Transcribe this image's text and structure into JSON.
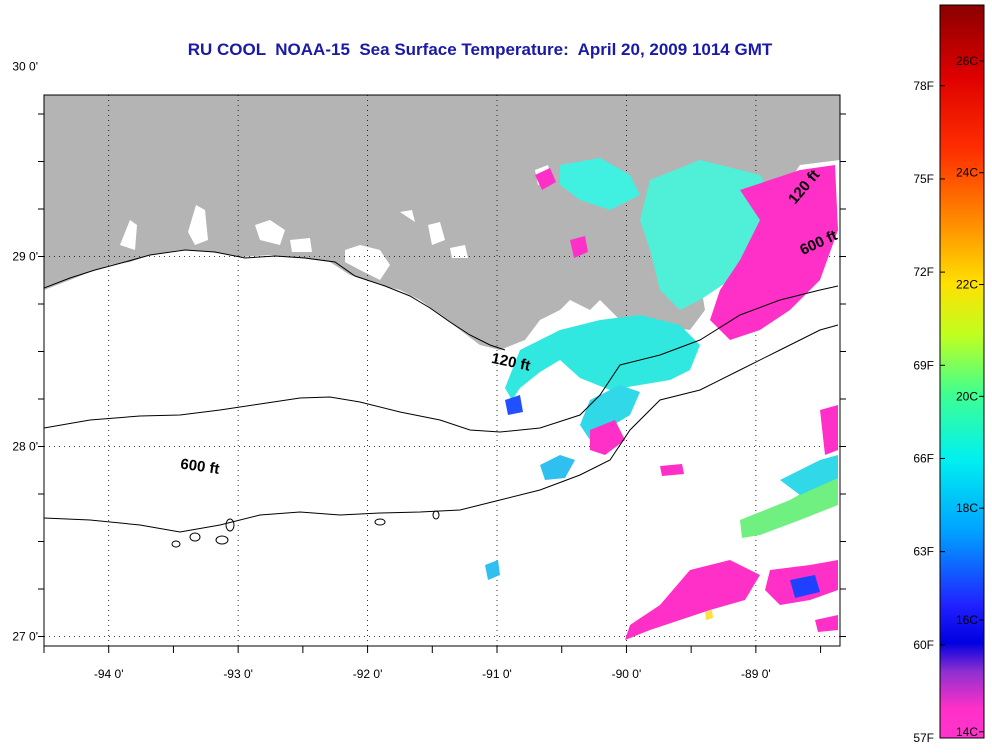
{
  "title": "RU COOL  NOAA-15  Sea Surface Temperature:  April 20, 2009 1014 GMT",
  "map": {
    "lon_range": [
      -94.5,
      -88.35
    ],
    "lat_range": [
      26.95,
      29.85
    ],
    "lon_ticks": [
      {
        "value": -94,
        "label": "-94 0'"
      },
      {
        "value": -93,
        "label": "-93 0'"
      },
      {
        "value": -92,
        "label": "-92 0'"
      },
      {
        "value": -91,
        "label": "-91 0'"
      },
      {
        "value": -90,
        "label": "-90 0'"
      },
      {
        "value": -89,
        "label": "-89 0'"
      }
    ],
    "lat_ticks": [
      {
        "value": 30,
        "label": "30 0'"
      },
      {
        "value": 29,
        "label": "29 0'"
      },
      {
        "value": 28,
        "label": "28 0'"
      },
      {
        "value": 27,
        "label": "27 0'"
      }
    ],
    "contour_labels": [
      {
        "label": "120 ft",
        "lon": -90.9,
        "lat": 28.42
      },
      {
        "label": "600 ft",
        "lon": -93.3,
        "lat": 27.87
      },
      {
        "label": "120 ft",
        "lon": -88.6,
        "lat": 29.35
      },
      {
        "label": "600 ft",
        "lon": -88.5,
        "lat": 29.05
      }
    ]
  },
  "colorbar": {
    "fahrenheit_labels": [
      "78F",
      "75F",
      "72F",
      "69F",
      "66F",
      "63F",
      "60F",
      "57F"
    ],
    "celsius_labels": [
      "26C",
      "24C",
      "22C",
      "20C",
      "18C",
      "16C",
      "14C"
    ],
    "colors": [
      "#8b0000",
      "#ff0000",
      "#ff8c00",
      "#ffff00",
      "#7fff00",
      "#00ff80",
      "#00ffff",
      "#1e90ff",
      "#0000ff",
      "#9933cc",
      "#ff33cc"
    ]
  },
  "colors": {
    "land": "#b4b4b4",
    "title": "#1a1aa6"
  }
}
